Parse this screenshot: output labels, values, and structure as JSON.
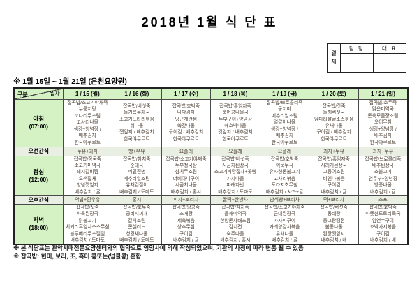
{
  "title": "2018년 1월 식 단 표",
  "approval": {
    "stamp_label": "결재",
    "columns": [
      "담 당",
      "대 표"
    ]
  },
  "period_note": "※ 1월 15일 ~ 1월 21일 (은천요양원)",
  "colors": {
    "label_green": "#d4f2c4",
    "snack_gray": "#e9efe2"
  },
  "table": {
    "corner": {
      "top": "일자",
      "bottom": "구분"
    },
    "days": [
      "1 / 15 (월)",
      "1 / 16 (화)",
      "1 / 17 (수)",
      "1 / 18 (목)",
      "1 / 19 (금)",
      "1 / 20 (토)",
      "1 / 21 (일)"
    ],
    "rows": [
      {
        "label": "아침\n(07:00)",
        "cells": [
          "잡곡밥/소고기야채죽\n누룽지탕\n코다리무조림\n고사리나물\n생강+양념장 /\n배추김치\n한국야쿠르트",
          "잡곡밥/버섯죽\n들기름무채국\n소고기느타리볶음\n취나물\n깻잎지 / 배추김치\n한국야쿠르트",
          "잡곡밥/호박죽\n나박김치\n당근계란찜\n쑥갓나물\n구이김 / 배추김치\n한국야쿠르트",
          "잡곡밥/흑임자죽\n북어콩나물국\n두부구이+양념장\n애호박나물\n깻잎지 / 배추김치\n한국야쿠르트",
          "잡곡밥/브로콜리죽\n동치미\n메추리알조림\n얼갈이나물\n생강+양념장 /\n배추김치\n한국야쿠르트",
          "잡곡밥/잣죽\n들깨버섯국\n닭다리살굴소스볶음\n유채나물\n구이김 / 배추김치\n한국야쿠르트",
          "잡곡밥/호두죽\n맑은미역국\n돈육모듬장조림\n오이무침\n생강+양념장 /\n배추김치\n한국야쿠르트"
        ]
      },
      {
        "label": "오전간식",
        "cells": [
          "두유+과자",
          "빵+우유",
          "요플레",
          "요플레",
          "요플레",
          "과자+두유",
          "과자+두유"
        ]
      },
      {
        "label": "점심\n(12:00)",
        "cells": [
          "잡곡밥/장국죽\n소고기미역국\n돼지갈비찜\n오색잡채\n양념깻잎지\n배추김치 / 귤",
          "잡곡밥/참치죽\n순대국\n메밀전병\n메추리알조림\n유채겉절이\n배추김치 / 토마토",
          "잡곡밥/소고기야채죽\n두부청국장\n삼치무조림\n너비아니구이\n시금치나물\n배추김치 / 홍시",
          "잡곡밥/버섯죽\n시금치된장국\n소고기피망잡채+꽃빵\n가지나물\n파래자반\n배추김치 / 토마토",
          "잡곡밥/호박죽\n어묵무국\n유자청돈불고기\n고사리볶음\n도라지초무침\n배추김치 / 사과+귤",
          "잡곡밥/흑임자죽\n시래기된장국\n고등어조림\n비엔나볶음\n구이김\n배추김치 / 귤",
          "잡곡밥/브로콜리죽\n배추된장국\n소불고기\n연두부+양념장\n방풍나물\n배추김치 / 귤"
        ]
      },
      {
        "label": "오후간식",
        "cells": [
          "약밥+흰우유",
          "홍시",
          "피자+보리차",
          "꿀떡+한방차",
          "밤식빵+보리차",
          "떡+보리차",
          "스프"
        ]
      },
      {
        "label": "저녁\n(18:00)",
        "cells": [
          "잡곡밥/잣죽\n아욱된장국\n닭불고기\n치커리흑임자소스무침\n블루베리무초절임\n배추김치 / 토마토",
          "잡곡밥/호두죽\n콩비지찌개\n갈치조림\n콘샐러드\n청경채나물\n배추김치 / 토마토",
          "잡곡밥/땅콩죽\n조개탕\n제육볶음\n상추무침\n구이김\n배추김치 / 귤",
          "잡곡밥/참치죽\n들깨미역국\n한방돈사태조림\n김치전\n숙주나물\n배추김치 / 홍시",
          "잡곡밥/소고기야채죽\n근대된장국\n가자미구이\n카레향감자볶음\n유채나물\n배추김치 / 귤",
          "잡곡밥/버섯죽\n동태탕\n동그랑땡전\n봄동나물\n된장깻잎지\n배추김치 / 배",
          "잡곡밥/호박죽\n따뜻한도토리묵국\n임연수구이\n호박가지볶음\n구이김\n배추김치 / 배"
        ]
      }
    ]
  },
  "footnotes": [
    "※ 본 식단표는 관악치매전문요양센터와의 협약으로 영양사에 의해 작성되었으며, 기관의 사정에 따라 변동 될 수 있음",
    "※ 잡곡밥: 현미, 보리, 조, 흑미 콩또는(넝쿨콩) 혼합"
  ]
}
